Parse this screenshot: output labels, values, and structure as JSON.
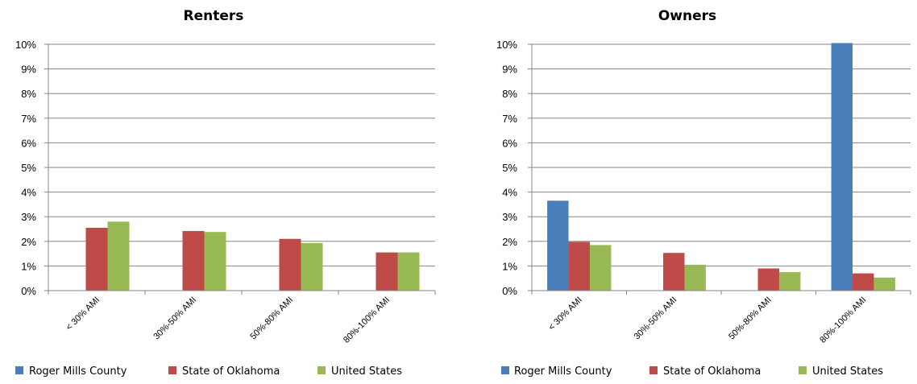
{
  "colors": {
    "Roger Mills County": "#4a7ebb",
    "State of Oklahoma": "#be4b48",
    "United States": "#98b954",
    "grid": "#868686",
    "axis": "#868686"
  },
  "chart_data": [
    {
      "type": "bar",
      "title": "Renters",
      "categories": [
        "< 30% AMI",
        "30%-50% AMI",
        "50%-80% AMI",
        "80%-100% AMI"
      ],
      "yticks": [
        "0%",
        "1%",
        "2%",
        "3%",
        "4%",
        "5%",
        "6%",
        "7%",
        "8%",
        "9%",
        "10%"
      ],
      "ylim": [
        0,
        10
      ],
      "grid": true,
      "legend_position": "bottom",
      "series": [
        {
          "name": "Roger Mills County",
          "values": [
            0,
            0,
            0,
            0
          ]
        },
        {
          "name": "State of Oklahoma",
          "values": [
            2.55,
            2.42,
            2.1,
            1.55
          ]
        },
        {
          "name": "United States",
          "values": [
            2.8,
            2.38,
            1.93,
            1.55
          ]
        }
      ]
    },
    {
      "type": "bar",
      "title": "Owners",
      "categories": [
        "< 30% AMI",
        "30%-50% AMI",
        "50%-80% AMI",
        "80%-100% AMI"
      ],
      "yticks": [
        "0%",
        "1%",
        "2%",
        "3%",
        "4%",
        "5%",
        "6%",
        "7%",
        "8%",
        "9%",
        "10%"
      ],
      "ylim": [
        0,
        10
      ],
      "grid": true,
      "legend_position": "bottom",
      "series": [
        {
          "name": "Roger Mills County",
          "values": [
            3.65,
            0,
            0,
            10.2
          ]
        },
        {
          "name": "State of Oklahoma",
          "values": [
            1.98,
            1.53,
            0.9,
            0.7
          ]
        },
        {
          "name": "United States",
          "values": [
            1.85,
            1.05,
            0.75,
            0.53
          ]
        }
      ]
    }
  ]
}
